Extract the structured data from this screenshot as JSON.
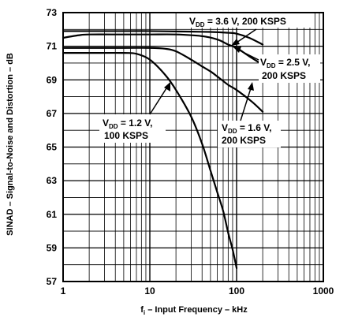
{
  "chart_data": {
    "type": "line",
    "xlabel": {
      "main": "f",
      "sub": "i",
      "rest": " – Input Frequency – kHz"
    },
    "ylabel": "SINAD – Signal-to-Noise and Distortion – dB",
    "x_scale": "log",
    "xlim": [
      1,
      1000
    ],
    "ylim": [
      57,
      73
    ],
    "x_ticks": [
      1,
      10,
      100,
      1000
    ],
    "x_tick_labels": [
      "1",
      "10",
      "100",
      "1000"
    ],
    "y_ticks": [
      57,
      59,
      61,
      63,
      65,
      67,
      69,
      71,
      73
    ],
    "y_tick_labels": [
      "57",
      "59",
      "61",
      "63",
      "65",
      "67",
      "69",
      "71",
      "73"
    ],
    "grid": true,
    "series": [
      {
        "name": "VDD = 3.6 V, 200 KSPS",
        "points": [
          [
            1,
            71.9
          ],
          [
            2,
            71.9
          ],
          [
            5,
            71.9
          ],
          [
            10,
            71.9
          ],
          [
            20,
            71.88
          ],
          [
            50,
            71.85
          ],
          [
            80,
            71.8
          ],
          [
            100,
            71.75
          ],
          [
            140,
            71.5
          ],
          [
            200,
            71.1
          ]
        ]
      },
      {
        "name": "VDD = 2.5 V, 200 KSPS",
        "points": [
          [
            1,
            71.5
          ],
          [
            1.5,
            71.65
          ],
          [
            2,
            71.7
          ],
          [
            5,
            71.7
          ],
          [
            10,
            71.7
          ],
          [
            20,
            71.7
          ],
          [
            40,
            71.6
          ],
          [
            60,
            71.4
          ],
          [
            80,
            71.1
          ],
          [
            100,
            70.9
          ],
          [
            140,
            70.4
          ],
          [
            200,
            69.9
          ]
        ]
      },
      {
        "name": "VDD = 1.6 V, 200 KSPS",
        "points": [
          [
            1,
            70.9
          ],
          [
            5,
            70.9
          ],
          [
            10,
            70.9
          ],
          [
            15,
            70.85
          ],
          [
            20,
            70.7
          ],
          [
            30,
            70.2
          ],
          [
            40,
            69.8
          ],
          [
            50,
            69.5
          ],
          [
            60,
            69.2
          ],
          [
            80,
            68.7
          ],
          [
            100,
            68.4
          ],
          [
            150,
            67.7
          ],
          [
            200,
            67.1
          ]
        ]
      },
      {
        "name": "VDD = 1.2 V, 100 KSPS",
        "points": [
          [
            1,
            70.6
          ],
          [
            2,
            70.6
          ],
          [
            5,
            70.6
          ],
          [
            7,
            70.55
          ],
          [
            10,
            70.2
          ],
          [
            15,
            69.3
          ],
          [
            20,
            68.4
          ],
          [
            30,
            66.8
          ],
          [
            40,
            65.2
          ],
          [
            50,
            63.6
          ],
          [
            60,
            62.3
          ],
          [
            70,
            61.2
          ],
          [
            80,
            59.9
          ],
          [
            90,
            58.9
          ],
          [
            100,
            57.8
          ]
        ]
      }
    ],
    "annotations": [
      {
        "id": "vdd36",
        "main": "V",
        "sub": "DD",
        "lines": [
          " = 3.6 V, 200 KSPS"
        ]
      },
      {
        "id": "vdd25",
        "main": "V",
        "sub": "DD",
        "lines": [
          " = 2.5 V,",
          "200 KSPS"
        ]
      },
      {
        "id": "vdd16",
        "main": "V",
        "sub": "DD",
        "lines": [
          " = 1.6 V,",
          "200 KSPS"
        ]
      },
      {
        "id": "vdd12",
        "main": "V",
        "sub": "DD",
        "lines": [
          " = 1.2 V,",
          "100 KSPS"
        ]
      }
    ]
  }
}
